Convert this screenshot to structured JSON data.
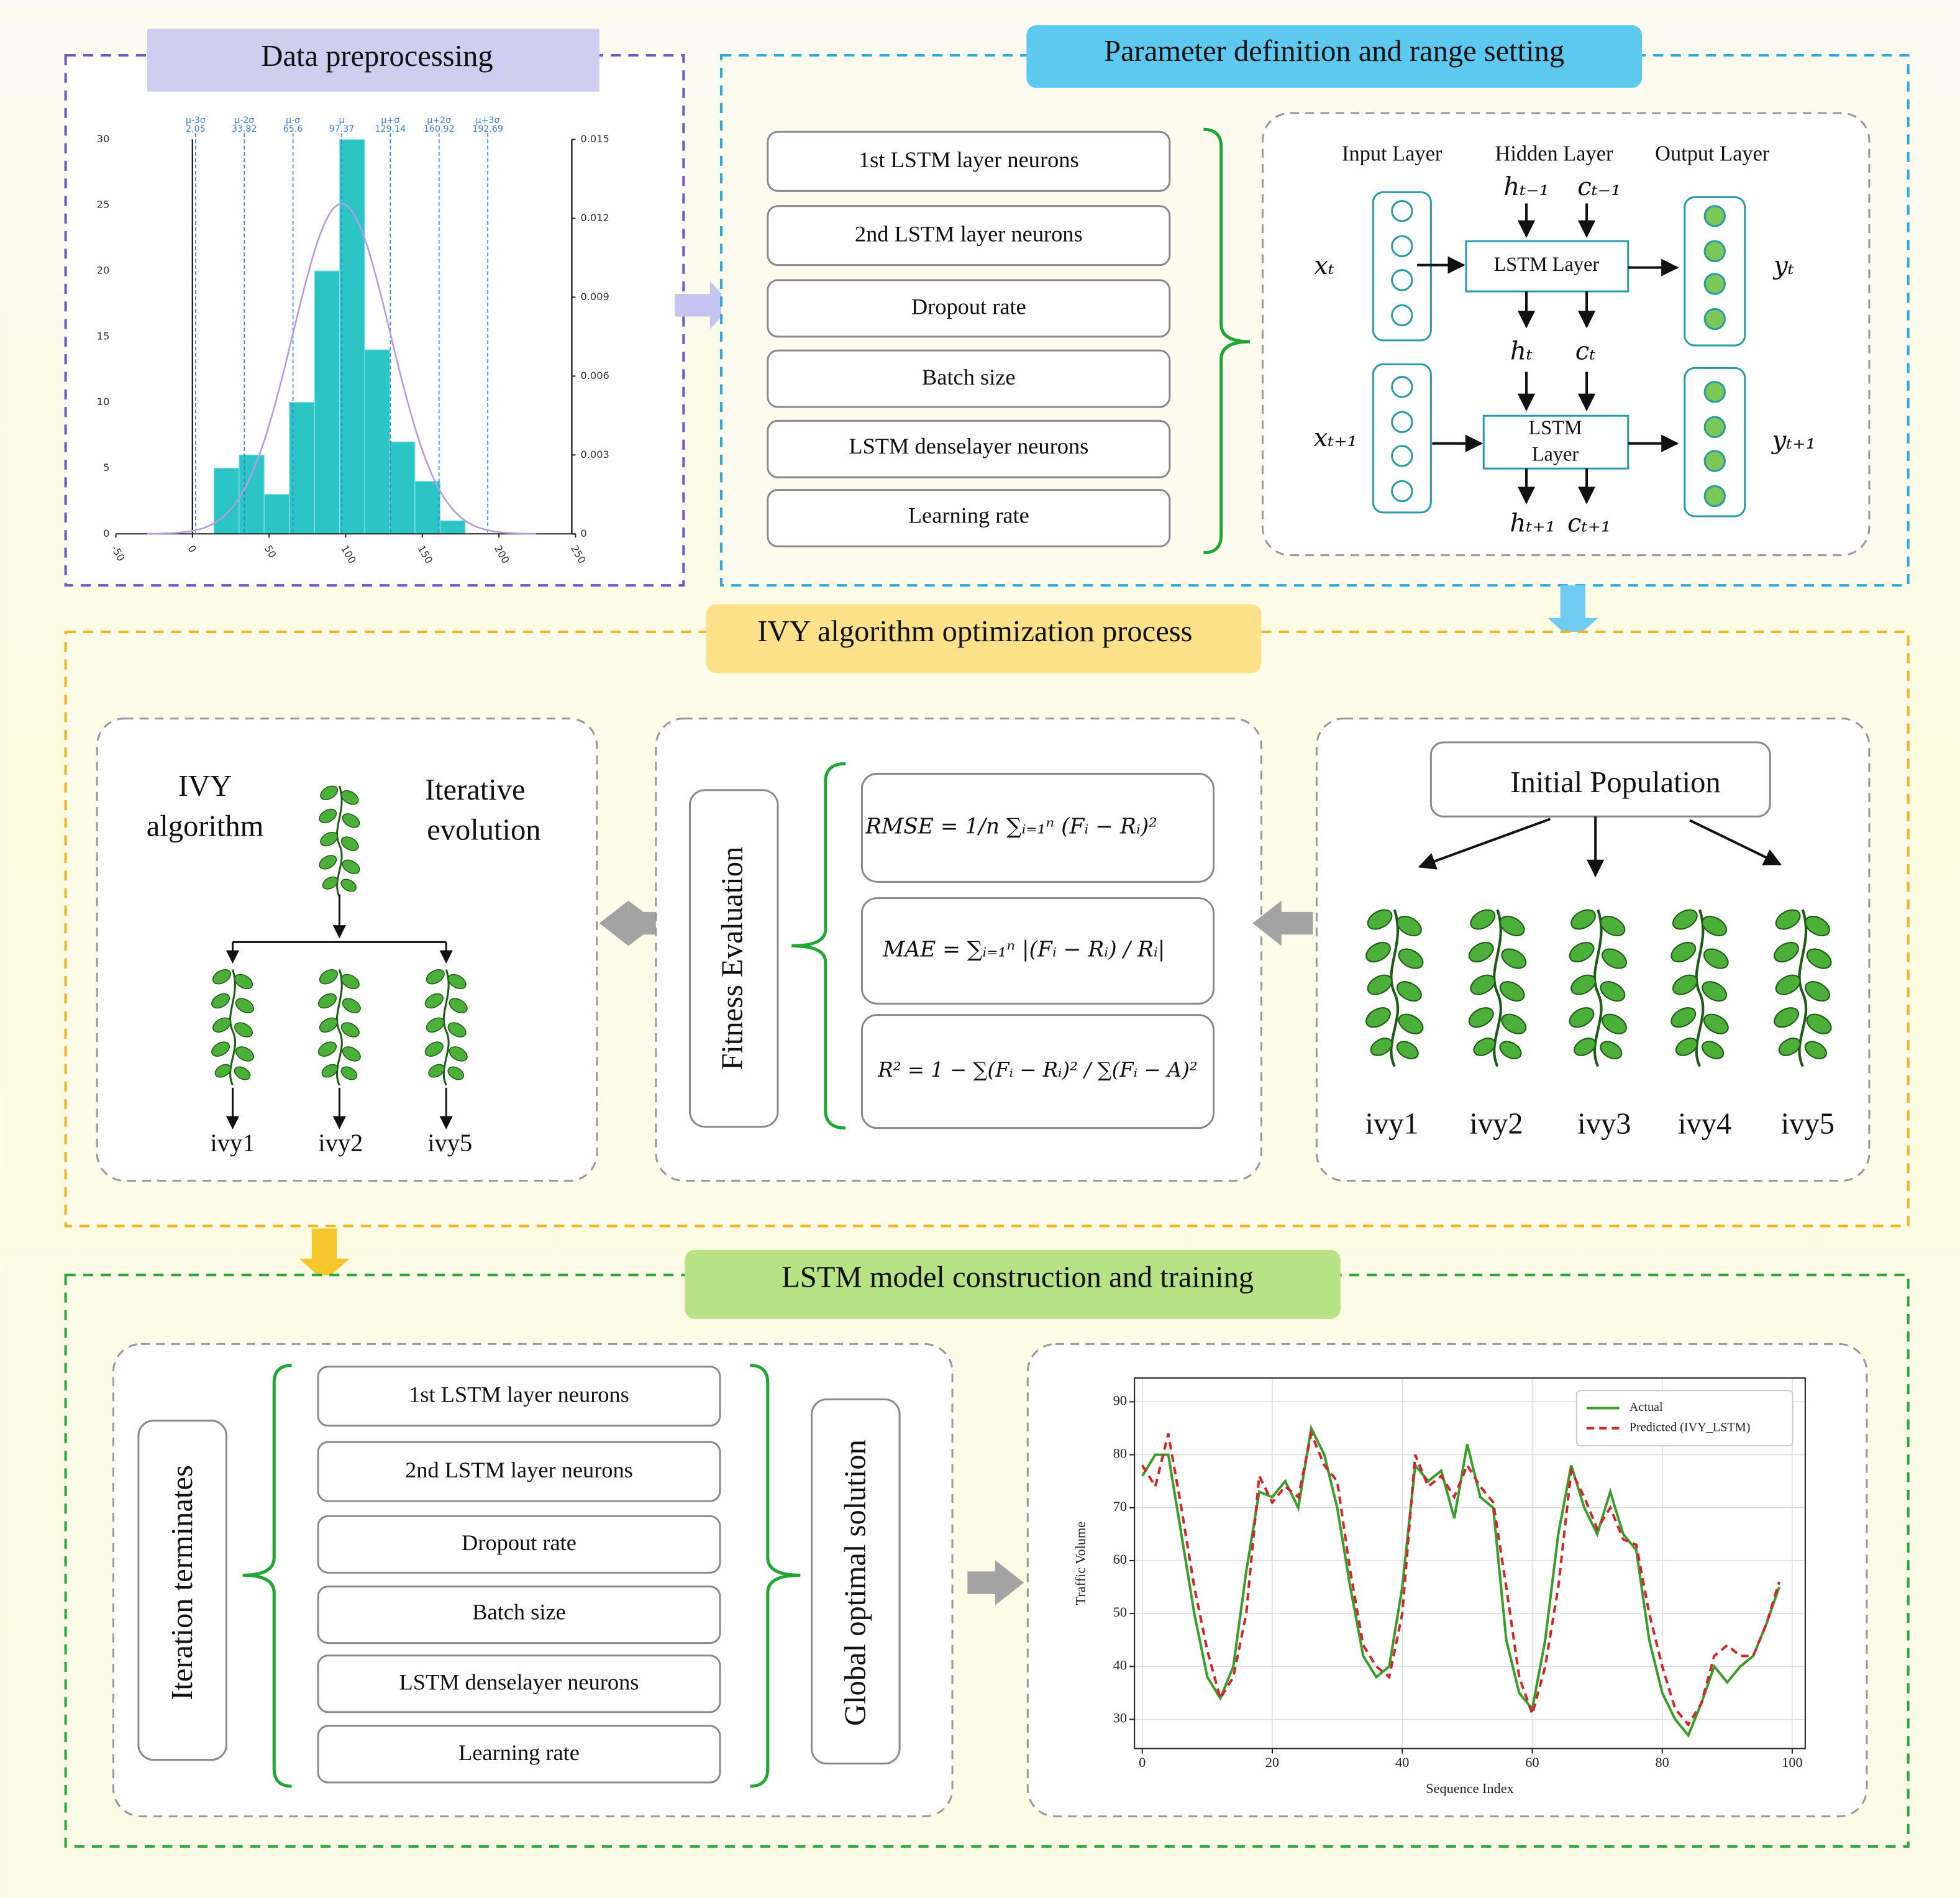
{
  "preprocessing": {
    "title": "Data preprocessing"
  },
  "parameters": {
    "title": "Parameter definition and range setting",
    "items": [
      "1st LSTM layer neurons",
      "2nd LSTM layer neurons",
      "Dropout rate",
      "Batch size",
      "LSTM denselayer neurons",
      "Learning rate"
    ]
  },
  "lstm_cell": {
    "input_layer": "Input Layer",
    "hidden_layer": "Hidden Layer",
    "output_layer": "Output Layer",
    "x_t": "xₜ",
    "x_t1": "xₜ₊₁",
    "h_prev": "hₜ₋₁",
    "c_prev": "cₜ₋₁",
    "h_t": "hₜ",
    "c_t": "cₜ",
    "h_next": "hₜ₊₁",
    "c_next": "cₜ₊₁",
    "y_t": "yₜ",
    "y_t1": "yₜ₊₁",
    "layer1": "LSTM Layer",
    "layer2": [
      "LSTM",
      "Layer"
    ]
  },
  "ivy_process": {
    "title": "IVY algorithm optimization process",
    "algorithm": {
      "name": [
        "IVY",
        "algorithm"
      ],
      "evolution": [
        "Iterative",
        "evolution"
      ],
      "offspring": [
        "ivy1",
        "ivy2",
        "ivy5"
      ]
    },
    "fitness": {
      "label": "Fitness Evaluation",
      "formulas": [
        "RMSE = 1/n ∑ᵢ₌₁ⁿ (Fᵢ − Rᵢ)²",
        "MAE = ∑ᵢ₌₁ⁿ |(Fᵢ − Rᵢ) / Rᵢ|",
        "R² = 1 − ∑(Fᵢ − Rᵢ)² / ∑(Fᵢ − A)²"
      ]
    },
    "population": {
      "label": "Initial Population",
      "members": [
        "ivy1",
        "ivy2",
        "ivy3",
        "ivy4",
        "ivy5"
      ]
    }
  },
  "training": {
    "title": "LSTM model construction and training",
    "terminates": "Iteration terminates",
    "items": [
      "1st LSTM layer neurons",
      "2nd LSTM layer neurons",
      "Dropout rate",
      "Batch size",
      "LSTM denselayer neurons",
      "Learning rate"
    ],
    "solution": "Global optimal solution"
  },
  "chart_data": [
    {
      "type": "histogram",
      "color": "#2cc5c5",
      "curve_color": "#b79be3",
      "bins": [
        14,
        30.4,
        46.8,
        63.2,
        79.6,
        96,
        112.4,
        128.8,
        145.2,
        161.6,
        178
      ],
      "counts": [
        5,
        6,
        3,
        10,
        20,
        30,
        14,
        7,
        4,
        1
      ],
      "xlim": [
        -50,
        250
      ],
      "xticks": [
        -50,
        0,
        50,
        100,
        150,
        200,
        250
      ],
      "ylim": [
        0,
        30
      ],
      "yticks": [
        0,
        5,
        10,
        15,
        20,
        25,
        30
      ],
      "y2lim": [
        0,
        0.015
      ],
      "y2ticks": [
        0,
        0.003,
        0.006,
        0.009,
        0.012,
        0.015
      ],
      "annotations": [
        {
          "label": "μ-3σ",
          "value": 2.05
        },
        {
          "label": "μ-2σ",
          "value": 33.82
        },
        {
          "label": "μ-σ",
          "value": 65.6
        },
        {
          "label": "μ",
          "value": 97.37
        },
        {
          "label": "μ+σ",
          "value": 129.14
        },
        {
          "label": "μ+2σ",
          "value": 160.92
        },
        {
          "label": "μ+3σ",
          "value": 192.69
        }
      ]
    },
    {
      "type": "line",
      "xlabel": "Sequence Index",
      "ylabel": "Traffic Volume",
      "grid": true,
      "legend": "upper right",
      "x": [
        0,
        2,
        4,
        6,
        8,
        10,
        12,
        14,
        16,
        18,
        20,
        22,
        24,
        26,
        28,
        30,
        32,
        34,
        36,
        38,
        40,
        42,
        44,
        46,
        48,
        50,
        52,
        54,
        56,
        58,
        60,
        62,
        64,
        66,
        68,
        70,
        72,
        74,
        76,
        78,
        80,
        82,
        84,
        86,
        88,
        90,
        92,
        94,
        96,
        98
      ],
      "series": [
        {
          "name": "Actual",
          "color": "#3a9d2c",
          "dash": false,
          "values": [
            76,
            80,
            80,
            65,
            50,
            38,
            34,
            40,
            58,
            73,
            72,
            75,
            70,
            85,
            80,
            70,
            55,
            42,
            38,
            40,
            55,
            78,
            75,
            77,
            68,
            82,
            72,
            70,
            45,
            35,
            32,
            45,
            65,
            78,
            70,
            65,
            73,
            65,
            62,
            45,
            35,
            30,
            27,
            33,
            40,
            37,
            40,
            42,
            48,
            55
          ]
        },
        {
          "name": "Predicted (IVY_LSTM)",
          "color": "#d0282a",
          "dash": true,
          "values": [
            78,
            74,
            84,
            70,
            55,
            43,
            34,
            38,
            50,
            76,
            71,
            74,
            72,
            84,
            78,
            75,
            58,
            44,
            40,
            38,
            50,
            80,
            74,
            76,
            72,
            78,
            74,
            71,
            55,
            38,
            31,
            40,
            55,
            77,
            72,
            66,
            70,
            64,
            63,
            50,
            40,
            32,
            29,
            33,
            42,
            44,
            42,
            42,
            48,
            56
          ]
        }
      ],
      "xlim": [
        -1.2,
        102
      ],
      "xticks": [
        0,
        20,
        40,
        60,
        80,
        100
      ],
      "ylim": [
        24.5,
        94.5
      ],
      "yticks": [
        30,
        40,
        50,
        60,
        70,
        80,
        90
      ]
    }
  ]
}
